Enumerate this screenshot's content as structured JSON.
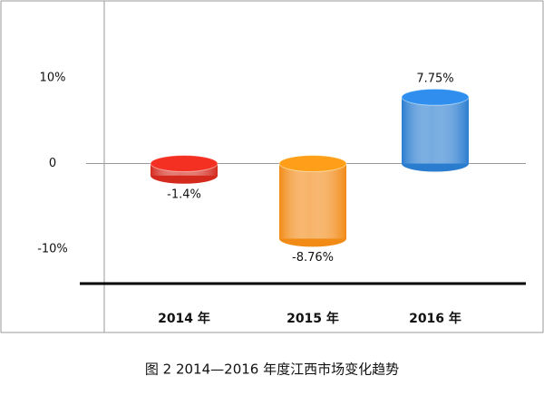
{
  "chart_data": {
    "type": "bar",
    "caption": "图 2   2014—2016 年度江西市场变化趋势",
    "categories": [
      "2014 年",
      "2015 年",
      "2016 年"
    ],
    "values": [
      -1.4,
      -8.76,
      7.75
    ],
    "value_labels": [
      "-1.4%",
      "-8.76%",
      "7.75%"
    ],
    "colors": [
      "#d42a1e",
      "#f28a16",
      "#2a7ccf"
    ],
    "ylim": [
      -14,
      17.5
    ],
    "yticks": [
      {
        "value": 10,
        "label": "10%"
      },
      0,
      {
        "value": -10,
        "label": "-10%"
      }
    ]
  }
}
